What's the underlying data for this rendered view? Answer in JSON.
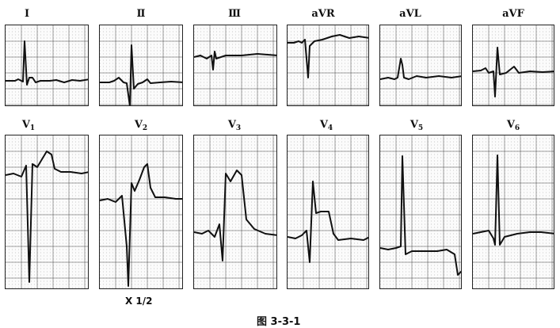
{
  "leads_row1": [
    {
      "key": "I",
      "label": "Ⅰ"
    },
    {
      "key": "II",
      "label": "Ⅱ"
    },
    {
      "key": "III",
      "label": "Ⅲ"
    },
    {
      "key": "aVR",
      "label": "aVR"
    },
    {
      "key": "aVL",
      "label": "aVL"
    },
    {
      "key": "aVF",
      "label": "aVF"
    }
  ],
  "leads_row2": [
    {
      "key": "V1",
      "label": "V",
      "sub": "1"
    },
    {
      "key": "V2",
      "label": "V",
      "sub": "2"
    },
    {
      "key": "V3",
      "label": "V",
      "sub": "3"
    },
    {
      "key": "V4",
      "label": "V",
      "sub": "4"
    },
    {
      "key": "V5",
      "label": "V",
      "sub": "5"
    },
    {
      "key": "V6",
      "label": "V",
      "sub": "6"
    }
  ],
  "scale_note": "X 1/2",
  "figure_caption": "图 3-3-1",
  "colors": {
    "trace": "#111111",
    "grid_dot": "#9a9a9a",
    "grid_line": "#444444"
  }
}
